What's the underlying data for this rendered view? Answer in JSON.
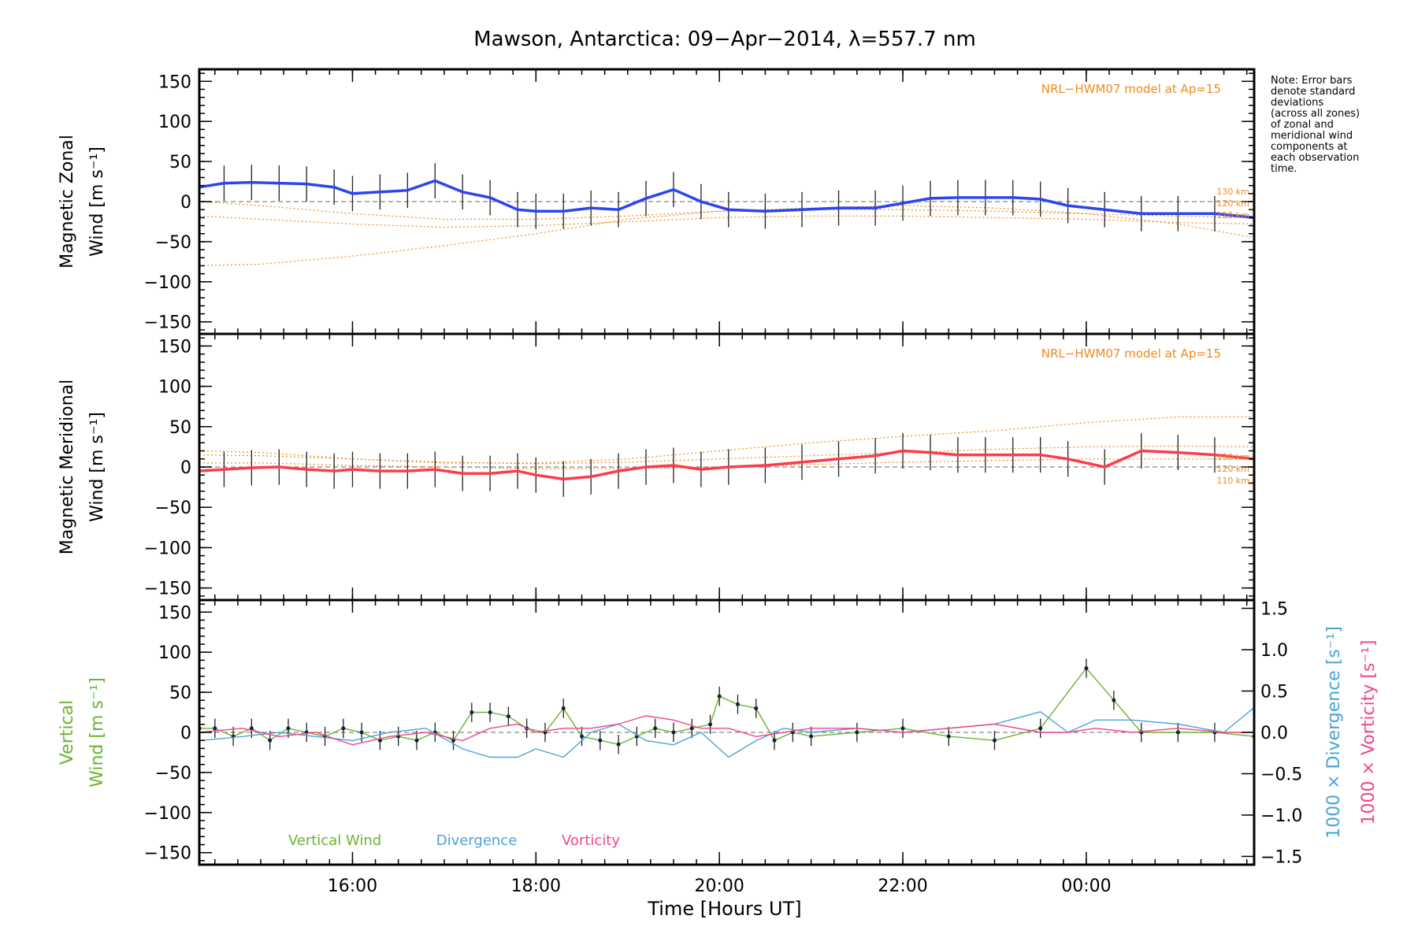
{
  "title": "Mawson, Antarctica: 09−Apr−2014, λ=557.7 nm",
  "note": [
    "Note: Error bars",
    "denote standard",
    "deviations",
    "(across all zones)",
    "of zonal and",
    "meridional wind",
    "components at",
    "each observation",
    "time."
  ],
  "xlabel": "Time [Hours UT]",
  "colors": {
    "zonal": "#2b45f0",
    "meridional": "#ff3b4a",
    "vertical": "#6ab42e",
    "divergence": "#4aa3d8",
    "vorticity": "#f0458e",
    "model": "#f08a1e",
    "samples": "#a9a8e0"
  },
  "chart_data": [
    {
      "panel": "zonal",
      "type": "line",
      "ylabel": [
        "Magnetic Zonal",
        "Wind [m s⁻¹]"
      ],
      "ylim": [
        -165,
        165
      ],
      "yticks": [
        -150,
        -100,
        -50,
        0,
        50,
        100,
        150
      ],
      "xlim": [
        14.33,
        25.83
      ],
      "xticks": [
        {
          "x": 16,
          "label": "16:00"
        },
        {
          "x": 18,
          "label": "18:00"
        },
        {
          "x": 20,
          "label": "20:00"
        },
        {
          "x": 22,
          "label": "22:00"
        },
        {
          "x": 24,
          "label": "00:00"
        }
      ],
      "annotation": "NRL−HWM07 model at Ap=15",
      "model_labels": [
        "130 km",
        "120 km",
        "110 km"
      ],
      "series": [
        {
          "name": "zonal",
          "x": [
            14.33,
            14.6,
            14.9,
            15.2,
            15.5,
            15.8,
            16.0,
            16.3,
            16.6,
            16.9,
            17.2,
            17.5,
            17.8,
            18.0,
            18.3,
            18.6,
            18.9,
            19.2,
            19.5,
            19.8,
            20.1,
            20.5,
            20.9,
            21.3,
            21.7,
            22.0,
            22.3,
            22.6,
            22.9,
            23.2,
            23.5,
            23.8,
            24.2,
            24.6,
            25.0,
            25.4,
            25.83
          ],
          "y": [
            18,
            23,
            24,
            23,
            22,
            18,
            10,
            12,
            14,
            26,
            12,
            5,
            -10,
            -12,
            -12,
            -8,
            -10,
            4,
            15,
            0,
            -10,
            -12,
            -10,
            -8,
            -8,
            -2,
            4,
            5,
            5,
            5,
            3,
            -5,
            -10,
            -15,
            -15,
            -15,
            -20
          ]
        }
      ],
      "models": [
        {
          "x": [
            14.33,
            15,
            16,
            17,
            18,
            19,
            20,
            21,
            22,
            23,
            24,
            25,
            25.83
          ],
          "y": [
            -80,
            -78,
            -68,
            -55,
            -40,
            -22,
            -12,
            -8,
            -5,
            -8,
            -15,
            -28,
            -45
          ]
        },
        {
          "x": [
            14.33,
            15,
            16,
            17,
            18,
            19,
            20,
            21,
            22,
            23,
            24,
            25,
            25.83
          ],
          "y": [
            -18,
            -22,
            -28,
            -32,
            -30,
            -25,
            -20,
            -18,
            -18,
            -20,
            -22,
            -26,
            -28
          ]
        },
        {
          "x": [
            14.33,
            15,
            16,
            17,
            18,
            19,
            20,
            21,
            22,
            23,
            24,
            25,
            25.83
          ],
          "y": [
            0,
            -5,
            -15,
            -22,
            -22,
            -18,
            -12,
            -10,
            -10,
            -12,
            -15,
            -18,
            -20
          ]
        }
      ]
    },
    {
      "panel": "meridional",
      "type": "line",
      "ylabel": [
        "Magnetic Meridional",
        "Wind [m s⁻¹]"
      ],
      "ylim": [
        -165,
        165
      ],
      "yticks": [
        -150,
        -100,
        -50,
        0,
        50,
        100,
        150
      ],
      "xlim": [
        14.33,
        25.83
      ],
      "annotation": "NRL−HWM07 model at Ap=15",
      "model_labels": [
        "130 km",
        "120 km",
        "110 km"
      ],
      "series": [
        {
          "name": "meridional",
          "x": [
            14.33,
            14.6,
            14.9,
            15.2,
            15.5,
            15.8,
            16.0,
            16.3,
            16.6,
            16.9,
            17.2,
            17.5,
            17.8,
            18.0,
            18.3,
            18.6,
            18.9,
            19.2,
            19.5,
            19.8,
            20.1,
            20.5,
            20.9,
            21.3,
            21.7,
            22.0,
            22.3,
            22.6,
            22.9,
            23.2,
            23.5,
            23.8,
            24.2,
            24.6,
            25.0,
            25.4,
            25.83
          ],
          "y": [
            -5,
            -3,
            -1,
            0,
            -3,
            -5,
            -3,
            -5,
            -5,
            -3,
            -8,
            -8,
            -5,
            -10,
            -15,
            -12,
            -5,
            0,
            2,
            -3,
            0,
            2,
            6,
            10,
            14,
            20,
            18,
            15,
            15,
            15,
            15,
            10,
            0,
            20,
            18,
            15,
            10
          ]
        }
      ],
      "models": [
        {
          "x": [
            14.33,
            15,
            16,
            17,
            18,
            19,
            20,
            21,
            22,
            23,
            24,
            25,
            25.83
          ],
          "y": [
            20,
            18,
            10,
            5,
            5,
            10,
            20,
            30,
            38,
            45,
            55,
            62,
            62
          ]
        },
        {
          "x": [
            14.33,
            15,
            16,
            17,
            18,
            19,
            20,
            21,
            22,
            23,
            24,
            25,
            25.83
          ],
          "y": [
            15,
            14,
            10,
            6,
            4,
            6,
            10,
            14,
            18,
            22,
            25,
            26,
            25
          ]
        },
        {
          "x": [
            14.33,
            15,
            16,
            17,
            18,
            19,
            20,
            21,
            22,
            23,
            24,
            25,
            25.83
          ],
          "y": [
            5,
            5,
            2,
            0,
            -2,
            -2,
            0,
            3,
            6,
            8,
            10,
            10,
            10
          ]
        }
      ]
    },
    {
      "panel": "vertical",
      "type": "line",
      "ylabel": [
        "Vertical",
        "Wind [m s⁻¹]"
      ],
      "ylim": [
        -165,
        165
      ],
      "yticks": [
        -150,
        -100,
        -50,
        0,
        50,
        100,
        150
      ],
      "y2label": [
        "1000 × Divergence [s⁻¹]",
        "1000 × Vorticity [s⁻¹]"
      ],
      "y2lim": [
        -1.6,
        1.6
      ],
      "y2ticks": [
        "1.5",
        "1.0",
        "0.5",
        "0.0",
        "−0.5",
        "−1.0",
        "−1.5"
      ],
      "y2tickvals": [
        1.5,
        1.0,
        0.5,
        0.0,
        -0.5,
        -1.0,
        -1.5
      ],
      "xlim": [
        14.33,
        25.83
      ],
      "legend": [
        "Vertical Wind",
        "Divergence",
        "Vorticity"
      ],
      "series": [
        {
          "name": "Vertical Wind",
          "x": [
            14.33,
            14.5,
            14.7,
            14.9,
            15.1,
            15.3,
            15.5,
            15.7,
            15.9,
            16.1,
            16.3,
            16.5,
            16.7,
            16.9,
            17.1,
            17.3,
            17.5,
            17.7,
            17.9,
            18.1,
            18.3,
            18.5,
            18.7,
            18.9,
            19.1,
            19.3,
            19.5,
            19.7,
            19.9,
            20.0,
            20.2,
            20.4,
            20.6,
            20.8,
            21.0,
            21.5,
            22.0,
            22.5,
            23.0,
            23.5,
            24.0,
            24.3,
            24.6,
            25.0,
            25.4,
            25.83
          ],
          "y": [
            5,
            5,
            -5,
            5,
            -10,
            5,
            0,
            -5,
            5,
            0,
            -10,
            -5,
            -10,
            0,
            -10,
            25,
            25,
            20,
            5,
            0,
            30,
            -5,
            -10,
            -15,
            -5,
            5,
            0,
            5,
            10,
            45,
            35,
            30,
            -10,
            0,
            -5,
            0,
            5,
            -5,
            -10,
            5,
            80,
            40,
            0,
            0,
            0,
            -5
          ]
        },
        {
          "name": "Divergence",
          "x": [
            14.33,
            14.8,
            15.2,
            15.6,
            16.0,
            16.4,
            16.8,
            17.2,
            17.5,
            17.8,
            18.0,
            18.3,
            18.6,
            18.9,
            19.2,
            19.5,
            19.8,
            20.1,
            20.4,
            20.7,
            21.0,
            21.5,
            22.0,
            22.5,
            23.0,
            23.5,
            23.8,
            24.1,
            24.5,
            25.0,
            25.5,
            25.83
          ],
          "y": [
            -0.1,
            -0.05,
            0.0,
            -0.05,
            -0.1,
            0.0,
            0.05,
            -0.2,
            -0.3,
            -0.3,
            -0.2,
            -0.3,
            0.0,
            0.1,
            -0.1,
            -0.15,
            0.0,
            -0.3,
            -0.1,
            0.05,
            0.0,
            0.05,
            0.0,
            0.05,
            0.1,
            0.25,
            0.0,
            0.15,
            0.15,
            0.1,
            0.0,
            0.3
          ]
        },
        {
          "name": "Vorticity",
          "x": [
            14.33,
            14.8,
            15.2,
            15.6,
            16.0,
            16.4,
            16.8,
            17.2,
            17.5,
            17.8,
            18.0,
            18.3,
            18.6,
            18.9,
            19.2,
            19.5,
            19.8,
            20.1,
            20.4,
            20.7,
            21.0,
            21.5,
            22.0,
            22.5,
            23.0,
            23.5,
            23.8,
            24.1,
            24.5,
            25.0,
            25.5,
            25.83
          ],
          "y": [
            0.0,
            0.05,
            -0.05,
            0.0,
            -0.15,
            -0.05,
            0.0,
            -0.1,
            0.05,
            0.1,
            0.0,
            0.05,
            0.05,
            0.1,
            0.2,
            0.15,
            0.05,
            0.05,
            -0.05,
            0.0,
            0.05,
            0.05,
            0.0,
            0.05,
            0.1,
            0.0,
            0.0,
            0.05,
            0.0,
            0.05,
            0.0,
            0.0
          ]
        }
      ]
    }
  ]
}
